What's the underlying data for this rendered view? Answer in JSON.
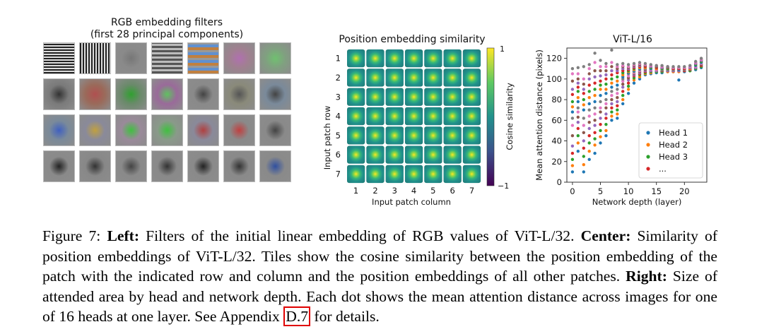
{
  "figure": {
    "left_panel": {
      "title_line1": "RGB embedding filters",
      "title_line2": "(first 28 principal components)",
      "rows": 4,
      "cols": 7
    },
    "caption": {
      "figure_label": "Figure 7:",
      "left_label": "Left:",
      "left_text": "Filters of the initial linear embedding of RGB values of ViT-L/32.",
      "center_label": "Center:",
      "center_text": "Similarity of position embeddings of ViT-L/32. Tiles show the cosine similarity between the position embedding of the patch with the indicated row and column and the position embeddings of all other patches.",
      "right_label": "Right:",
      "right_text": "Size of attended area by head and network depth. Each dot shows the mean attention distance across images for one of 16 heads at one layer. See Appendix",
      "appendix_link": "D.7",
      "tail_text": "for details."
    }
  },
  "chart_data": [
    {
      "type": "heatmap",
      "title": "Position embedding similarity",
      "xlabel": "Input patch column",
      "ylabel": "Input patch row",
      "x_ticks": [
        "1",
        "2",
        "3",
        "4",
        "5",
        "6",
        "7"
      ],
      "y_ticks": [
        "1",
        "2",
        "3",
        "4",
        "5",
        "6",
        "7"
      ],
      "colorbar_label": "Cosine similarity",
      "colorbar_ticks": [
        "1",
        "−1"
      ],
      "colorbar_range": [
        -1,
        1
      ],
      "colormap": [
        "#440154",
        "#3b528b",
        "#21918c",
        "#5ec962",
        "#fde725"
      ]
    },
    {
      "type": "scatter",
      "title": "ViT-L/16",
      "xlabel": "Network depth (layer)",
      "ylabel": "Mean attention distance (pixels)",
      "xlim": [
        -1,
        24
      ],
      "ylim": [
        0,
        130
      ],
      "x_ticks": [
        0,
        5,
        10,
        15,
        20
      ],
      "y_ticks": [
        0,
        20,
        40,
        60,
        80,
        100,
        120
      ],
      "legend_position": "bottom-right",
      "legend": [
        {
          "label": "Head 1",
          "color": "#1f77b4"
        },
        {
          "label": "Head 2",
          "color": "#ff7f0e"
        },
        {
          "label": "Head 3",
          "color": "#2ca02c"
        },
        {
          "label": "...",
          "color": "#d62728"
        }
      ],
      "point_colors": [
        "#1f77b4",
        "#ff7f0e",
        "#2ca02c",
        "#d62728",
        "#9467bd",
        "#8c564b",
        "#e377c2",
        "#7f7f7f"
      ],
      "series": [
        {
          "x": 0,
          "y": [
            10,
            16,
            22,
            28,
            35,
            45,
            55,
            62,
            68,
            73,
            78,
            85,
            90,
            98,
            105,
            110
          ]
        },
        {
          "x": 1,
          "y": [
            30,
            38,
            45,
            52,
            58,
            63,
            68,
            72,
            78,
            82,
            88,
            92,
            96,
            100,
            105,
            111
          ]
        },
        {
          "x": 2,
          "y": [
            10,
            17,
            25,
            33,
            40,
            48,
            55,
            62,
            70,
            75,
            80,
            86,
            90,
            95,
            100,
            112
          ]
        },
        {
          "x": 3,
          "y": [
            22,
            30,
            38,
            45,
            52,
            58,
            64,
            70,
            76,
            82,
            88,
            94,
            100,
            105,
            110,
            114
          ]
        },
        {
          "x": 4,
          "y": [
            28,
            36,
            42,
            48,
            55,
            60,
            66,
            72,
            78,
            84,
            90,
            96,
            102,
            108,
            116,
            125
          ]
        },
        {
          "x": 5,
          "y": [
            38,
            44,
            50,
            56,
            62,
            68,
            72,
            78,
            84,
            90,
            94,
            98,
            103,
            108,
            112,
            118
          ]
        },
        {
          "x": 6,
          "y": [
            45,
            50,
            56,
            62,
            66,
            72,
            76,
            80,
            86,
            90,
            95,
            100,
            104,
            108,
            112,
            115
          ]
        },
        {
          "x": 7,
          "y": [
            60,
            64,
            68,
            72,
            76,
            80,
            84,
            88,
            92,
            96,
            100,
            104,
            108,
            112,
            116,
            128
          ]
        },
        {
          "x": 8,
          "y": [
            62,
            66,
            70,
            74,
            78,
            82,
            86,
            90,
            94,
            98,
            102,
            106,
            108,
            110,
            112,
            114
          ]
        },
        {
          "x": 9,
          "y": [
            76,
            80,
            84,
            88,
            92,
            95,
            98,
            100,
            102,
            104,
            106,
            108,
            110,
            112,
            113,
            115
          ]
        },
        {
          "x": 10,
          "y": [
            86,
            90,
            93,
            96,
            99,
            101,
            103,
            105,
            106,
            107,
            108,
            109,
            110,
            111,
            112,
            114
          ]
        },
        {
          "x": 11,
          "y": [
            96,
            99,
            101,
            103,
            104,
            105,
            106,
            107,
            108,
            109,
            110,
            111,
            112,
            113,
            114,
            115
          ]
        },
        {
          "x": 12,
          "y": [
            100,
            102,
            104,
            105,
            106,
            107,
            108,
            109,
            110,
            111,
            112,
            112,
            113,
            114,
            115,
            116
          ]
        },
        {
          "x": 13,
          "y": [
            104,
            105,
            106,
            107,
            108,
            109,
            110,
            110,
            111,
            111,
            112,
            112,
            113,
            113,
            114,
            115
          ]
        },
        {
          "x": 14,
          "y": [
            105,
            106,
            107,
            108,
            108,
            109,
            109,
            110,
            110,
            111,
            111,
            112,
            112,
            113,
            113,
            114
          ]
        },
        {
          "x": 15,
          "y": [
            106,
            107,
            107,
            108,
            108,
            109,
            109,
            110,
            110,
            110,
            111,
            111,
            112,
            112,
            113,
            113
          ]
        },
        {
          "x": 16,
          "y": [
            106,
            107,
            107,
            108,
            108,
            108,
            109,
            109,
            110,
            110,
            110,
            111,
            111,
            112,
            112,
            113
          ]
        },
        {
          "x": 17,
          "y": [
            107,
            107,
            108,
            108,
            108,
            109,
            109,
            109,
            110,
            110,
            110,
            111,
            111,
            111,
            112,
            112
          ]
        },
        {
          "x": 18,
          "y": [
            107,
            107,
            108,
            108,
            108,
            109,
            109,
            109,
            110,
            110,
            110,
            110,
            111,
            111,
            111,
            112
          ]
        },
        {
          "x": 19,
          "y": [
            99,
            107,
            108,
            108,
            108,
            109,
            109,
            109,
            109,
            110,
            110,
            110,
            111,
            111,
            111,
            112
          ]
        },
        {
          "x": 20,
          "y": [
            107,
            108,
            108,
            108,
            109,
            109,
            109,
            109,
            110,
            110,
            110,
            110,
            111,
            111,
            111,
            112
          ]
        },
        {
          "x": 21,
          "y": [
            108,
            108,
            108,
            109,
            109,
            109,
            110,
            110,
            110,
            110,
            111,
            111,
            111,
            112,
            112,
            113
          ]
        },
        {
          "x": 22,
          "y": [
            109,
            110,
            110,
            111,
            111,
            112,
            112,
            113,
            113,
            114,
            114,
            115,
            115,
            116,
            116,
            117
          ]
        },
        {
          "x": 23,
          "y": [
            111,
            112,
            112,
            113,
            114,
            114,
            115,
            116,
            116,
            117,
            117,
            118,
            118,
            119,
            119,
            120
          ]
        }
      ]
    }
  ]
}
